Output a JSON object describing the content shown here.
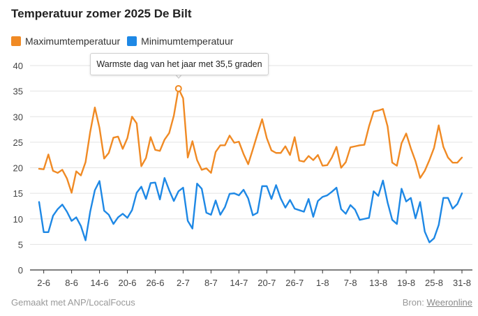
{
  "title": "Temperatuur zomer 2025 De Bilt",
  "legend": [
    {
      "label": "Maximumtemperatuur",
      "color": "#f08a24"
    },
    {
      "label": "Minimumtemperatuur",
      "color": "#1e88e5"
    }
  ],
  "annotation": {
    "text": "Warmste dag van het jaar met 35,5 graden",
    "date": "30-6",
    "value": 35.5
  },
  "footer": {
    "left": "Gemaakt met ANP/LocalFocus",
    "source_prefix": "Bron:",
    "source_link": "Weeronline"
  },
  "chart_data": {
    "type": "line",
    "title": "Temperatuur zomer 2025 De Bilt",
    "xlabel": "",
    "ylabel": "",
    "ylim": [
      0,
      40
    ],
    "yticks": [
      0,
      5,
      10,
      15,
      20,
      25,
      30,
      35,
      40
    ],
    "grid": true,
    "legend_position": "top-left",
    "x_start": "1-6",
    "x_end": "31-8",
    "x_tick_labels": [
      "2-6",
      "8-6",
      "14-6",
      "20-6",
      "26-6",
      "2-7",
      "8-7",
      "14-7",
      "20-7",
      "26-7",
      "1-8",
      "7-8",
      "13-8",
      "19-8",
      "25-8",
      "31-8"
    ],
    "series": [
      {
        "name": "Maximumtemperatuur",
        "color": "#f08a24",
        "values": [
          19.8,
          19.7,
          22.6,
          19.4,
          19.0,
          19.6,
          17.9,
          15.1,
          19.3,
          18.5,
          21.1,
          27.0,
          31.8,
          27.8,
          21.8,
          22.9,
          25.9,
          26.1,
          23.7,
          25.8,
          30.0,
          28.7,
          20.3,
          21.9,
          26.0,
          23.5,
          23.3,
          25.5,
          26.8,
          30.2,
          35.5,
          33.6,
          22.0,
          25.2,
          21.5,
          19.6,
          19.9,
          19.0,
          23.1,
          24.4,
          24.4,
          26.3,
          24.9,
          25.1,
          22.7,
          20.7,
          23.6,
          26.6,
          29.5,
          25.8,
          23.4,
          22.9,
          22.9,
          24.2,
          22.5,
          26.0,
          21.4,
          21.2,
          22.3,
          21.5,
          22.5,
          20.4,
          20.5,
          22.0,
          24.1,
          20.0,
          21.1,
          24.0,
          24.2,
          24.4,
          24.5,
          28.1,
          31.0,
          31.2,
          31.5,
          28.1,
          21.0,
          20.4,
          24.8,
          26.7,
          23.8,
          21.3,
          18.0,
          19.4,
          21.5,
          23.9,
          28.3,
          24.1,
          22.0,
          21.0,
          21.0,
          22.0
        ]
      },
      {
        "name": "Minimumtemperatuur",
        "color": "#1e88e5",
        "values": [
          13.3,
          7.4,
          7.4,
          10.6,
          11.9,
          12.8,
          11.4,
          9.6,
          10.3,
          8.6,
          5.8,
          11.4,
          15.6,
          17.4,
          11.6,
          10.8,
          9.0,
          10.3,
          11.0,
          10.2,
          11.7,
          15.1,
          16.3,
          13.9,
          17.0,
          17.1,
          13.8,
          18.0,
          15.6,
          13.5,
          15.4,
          16.1,
          9.6,
          8.1,
          16.9,
          15.9,
          11.2,
          10.8,
          13.6,
          10.8,
          12.3,
          14.9,
          15.0,
          14.6,
          15.7,
          14.0,
          10.7,
          11.2,
          16.4,
          16.4,
          13.9,
          16.6,
          14.0,
          12.2,
          13.7,
          12.0,
          11.7,
          11.4,
          13.9,
          10.4,
          13.5,
          14.3,
          14.6,
          15.3,
          16.1,
          11.9,
          11.0,
          12.7,
          11.8,
          9.8,
          10.0,
          10.2,
          15.4,
          14.5,
          17.5,
          13.2,
          9.8,
          9.0,
          15.9,
          13.4,
          14.1,
          10.1,
          13.3,
          7.5,
          5.4,
          6.2,
          8.8,
          14.1,
          14.1,
          12.0,
          12.9,
          15.0
        ]
      }
    ]
  }
}
